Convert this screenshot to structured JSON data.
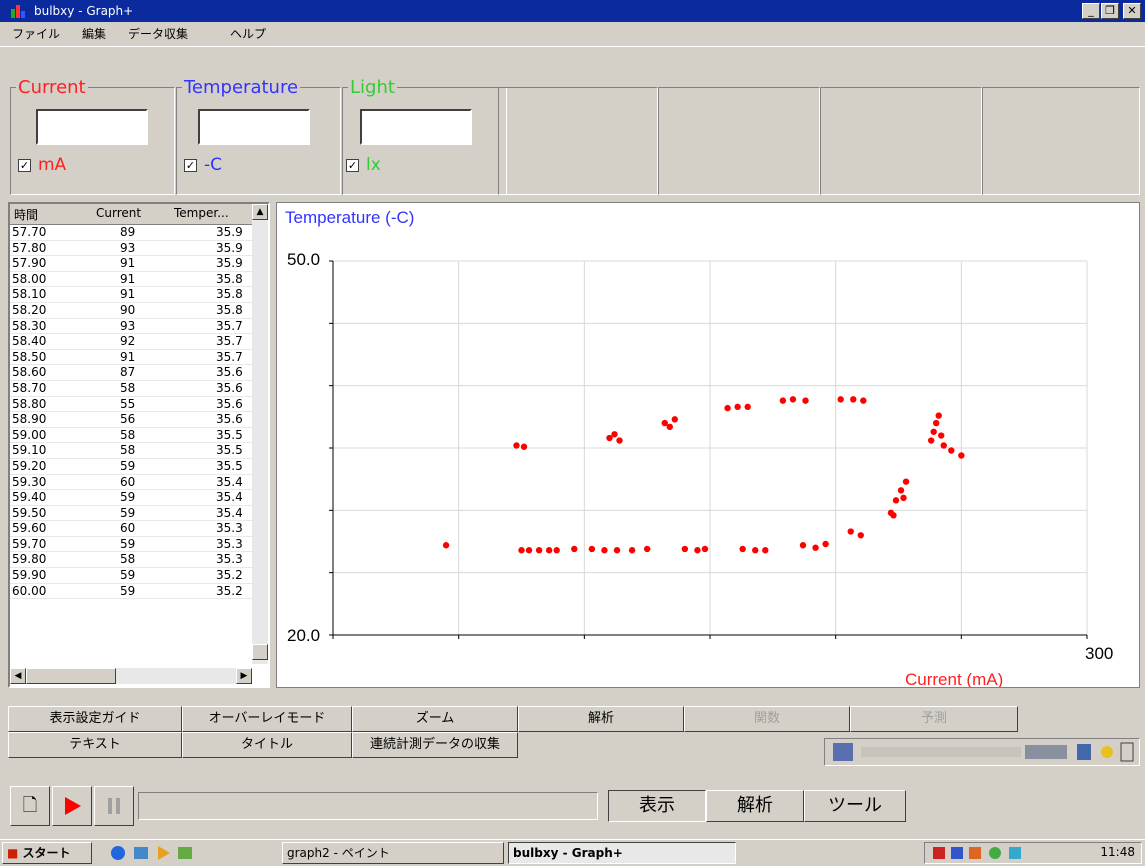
{
  "window": {
    "title": "bulbxy - Graph+"
  },
  "menu": [
    "ファイル",
    "編集",
    "データ収集",
    "ヘルプ"
  ],
  "sensors": [
    {
      "label": "Current",
      "unit": "mA",
      "color": "#ff2020",
      "checked": true
    },
    {
      "label": "Temperature",
      "unit": "-C",
      "color": "#3333ff",
      "checked": true
    },
    {
      "label": "Light",
      "unit": "lx",
      "color": "#33cc33",
      "checked": true
    }
  ],
  "table": {
    "headers": [
      "時間",
      "Current",
      "Temper..."
    ],
    "rows": [
      [
        "57.70",
        "89",
        "35.9"
      ],
      [
        "57.80",
        "93",
        "35.9"
      ],
      [
        "57.90",
        "91",
        "35.9"
      ],
      [
        "58.00",
        "91",
        "35.8"
      ],
      [
        "58.10",
        "91",
        "35.8"
      ],
      [
        "58.20",
        "90",
        "35.8"
      ],
      [
        "58.30",
        "93",
        "35.7"
      ],
      [
        "58.40",
        "92",
        "35.7"
      ],
      [
        "58.50",
        "91",
        "35.7"
      ],
      [
        "58.60",
        "87",
        "35.6"
      ],
      [
        "58.70",
        "58",
        "35.6"
      ],
      [
        "58.80",
        "55",
        "35.6"
      ],
      [
        "58.90",
        "56",
        "35.6"
      ],
      [
        "59.00",
        "58",
        "35.5"
      ],
      [
        "59.10",
        "58",
        "35.5"
      ],
      [
        "59.20",
        "59",
        "35.5"
      ],
      [
        "59.30",
        "60",
        "35.4"
      ],
      [
        "59.40",
        "59",
        "35.4"
      ],
      [
        "59.50",
        "59",
        "35.4"
      ],
      [
        "59.60",
        "60",
        "35.3"
      ],
      [
        "59.70",
        "59",
        "35.3"
      ],
      [
        "59.80",
        "58",
        "35.3"
      ],
      [
        "59.90",
        "59",
        "35.2"
      ],
      [
        "60.00",
        "59",
        "35.2"
      ]
    ]
  },
  "chart_data": {
    "type": "scatter",
    "ylabel": "Temperature (-C)",
    "xlabel": "Current (mA)",
    "ymax_label": "50.0",
    "ymin_label": "20.0",
    "xmax_label": "300",
    "xlim": [
      0,
      300
    ],
    "ylim": [
      20,
      50
    ],
    "grid": true,
    "series": [
      {
        "color": "#ff0000",
        "points": [
          [
            45,
            27.2
          ],
          [
            75,
            26.8
          ],
          [
            78,
            26.8
          ],
          [
            82,
            26.8
          ],
          [
            86,
            26.8
          ],
          [
            89,
            26.8
          ],
          [
            96,
            26.9
          ],
          [
            103,
            26.9
          ],
          [
            108,
            26.8
          ],
          [
            113,
            26.8
          ],
          [
            119,
            26.8
          ],
          [
            125,
            26.9
          ],
          [
            140,
            26.9
          ],
          [
            145,
            26.8
          ],
          [
            148,
            26.9
          ],
          [
            163,
            26.9
          ],
          [
            168,
            26.8
          ],
          [
            172,
            26.8
          ],
          [
            187,
            27.2
          ],
          [
            192,
            27.0
          ],
          [
            196,
            27.3
          ],
          [
            206,
            28.3
          ],
          [
            210,
            28.0
          ],
          [
            222,
            29.8
          ],
          [
            224,
            30.8
          ],
          [
            226,
            31.6
          ],
          [
            228,
            32.3
          ],
          [
            223,
            29.6
          ],
          [
            227,
            31.0
          ],
          [
            238,
            35.6
          ],
          [
            239,
            36.3
          ],
          [
            240,
            37.0
          ],
          [
            241,
            37.6
          ],
          [
            242,
            36.0
          ],
          [
            243,
            35.2
          ],
          [
            246,
            34.8
          ],
          [
            250,
            34.4
          ],
          [
            73,
            35.2
          ],
          [
            76,
            35.1
          ],
          [
            110,
            35.8
          ],
          [
            112,
            36.1
          ],
          [
            114,
            35.6
          ],
          [
            132,
            37.0
          ],
          [
            136,
            37.3
          ],
          [
            134,
            36.7
          ],
          [
            157,
            38.2
          ],
          [
            161,
            38.3
          ],
          [
            165,
            38.3
          ],
          [
            179,
            38.8
          ],
          [
            183,
            38.9
          ],
          [
            188,
            38.8
          ],
          [
            202,
            38.9
          ],
          [
            207,
            38.9
          ],
          [
            211,
            38.8
          ]
        ]
      }
    ]
  },
  "toolbar_row1": [
    {
      "label": "表示設定ガイド",
      "enabled": true
    },
    {
      "label": "オーバーレイモード",
      "enabled": true
    },
    {
      "label": "ズーム",
      "enabled": true
    },
    {
      "label": "解析",
      "enabled": true
    },
    {
      "label": "関数",
      "enabled": false
    },
    {
      "label": "予測",
      "enabled": false
    }
  ],
  "toolbar_row2": [
    {
      "label": "テキスト"
    },
    {
      "label": "タイトル"
    },
    {
      "label": "連続計測データの収集"
    }
  ],
  "bottom": {
    "tabs": [
      "表示",
      "解析",
      "ツール"
    ]
  },
  "taskbar": {
    "start": "スタート",
    "tasks": [
      "graph2 - ペイント",
      "bulbxy - Graph+"
    ],
    "clock": "11:48"
  }
}
